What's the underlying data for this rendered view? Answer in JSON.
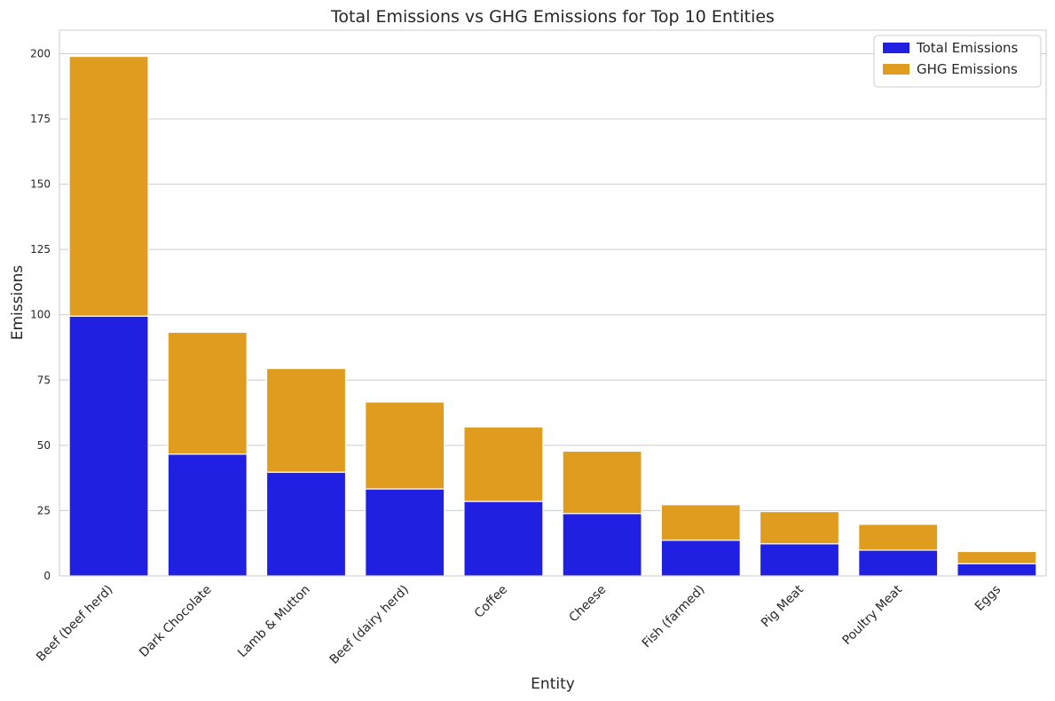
{
  "chart_data": {
    "type": "bar",
    "stacked": true,
    "title": "Total Emissions vs GHG Emissions for Top 10 Entities",
    "xlabel": "Entity",
    "ylabel": "Emissions",
    "ylim": [
      0,
      209
    ],
    "yticks": [
      0,
      25,
      50,
      75,
      100,
      125,
      150,
      175,
      200
    ],
    "grid": "horizontal",
    "legend_position": "top-right",
    "categories": [
      "Beef (beef herd)",
      "Dark Chocolate",
      "Lamb & Mutton",
      "Beef (dairy herd)",
      "Coffee",
      "Cheese",
      "Fish (farmed)",
      "Pig Meat",
      "Poultry Meat",
      "Eggs"
    ],
    "series": [
      {
        "name": "Total Emissions",
        "color": "#2020e2",
        "values": [
          99.48,
          46.65,
          39.72,
          33.3,
          28.53,
          23.88,
          13.63,
          12.31,
          9.87,
          4.67
        ]
      },
      {
        "name": "GHG Emissions",
        "color": "#e09c1f",
        "values": [
          99.48,
          46.65,
          39.72,
          33.3,
          28.53,
          23.88,
          13.63,
          12.31,
          9.87,
          4.67
        ]
      }
    ]
  }
}
